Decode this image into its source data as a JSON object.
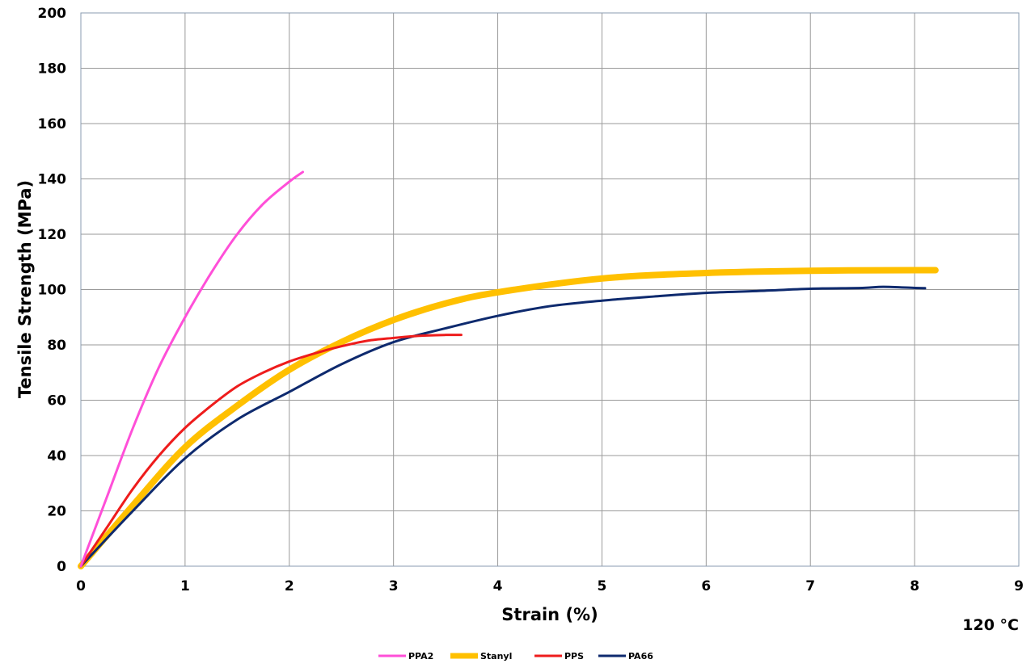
{
  "chart_data": {
    "type": "line",
    "xlabel": "Strain (%)",
    "ylabel": "Tensile Strength (MPa)",
    "xlim": [
      0,
      9
    ],
    "ylim": [
      0,
      200
    ],
    "x_ticks": [
      "0",
      "1",
      "2",
      "3",
      "4",
      "5",
      "6",
      "7",
      "8",
      "9"
    ],
    "y_ticks": [
      "0",
      "20",
      "40",
      "60",
      "80",
      "100",
      "120",
      "140",
      "160",
      "180",
      "200"
    ],
    "grid": true,
    "legend_position": "bottom",
    "annotation": "120 °C",
    "series": [
      {
        "name": "PPA2",
        "color": "#ff4fd8",
        "points": [
          [
            0,
            0
          ],
          [
            0.25,
            25
          ],
          [
            0.5,
            50
          ],
          [
            0.75,
            72
          ],
          [
            1,
            90
          ],
          [
            1.25,
            106
          ],
          [
            1.5,
            120
          ],
          [
            1.75,
            131
          ],
          [
            2,
            139
          ],
          [
            2.13,
            142.5
          ]
        ]
      },
      {
        "name": "Stanyl",
        "color": "#ffc000",
        "points": [
          [
            0,
            0
          ],
          [
            0.5,
            22
          ],
          [
            1,
            43
          ],
          [
            1.5,
            58
          ],
          [
            2,
            71
          ],
          [
            2.5,
            81
          ],
          [
            3,
            89
          ],
          [
            3.5,
            95
          ],
          [
            4,
            99
          ],
          [
            5,
            104
          ],
          [
            6,
            106
          ],
          [
            7,
            106.8
          ],
          [
            8,
            107
          ],
          [
            8.2,
            107
          ]
        ]
      },
      {
        "name": "PPS",
        "color": "#ee1c1c",
        "points": [
          [
            0,
            0
          ],
          [
            0.25,
            14
          ],
          [
            0.5,
            28
          ],
          [
            0.75,
            40
          ],
          [
            1,
            50
          ],
          [
            1.25,
            58
          ],
          [
            1.5,
            65
          ],
          [
            1.75,
            70
          ],
          [
            2,
            74
          ],
          [
            2.25,
            77
          ],
          [
            2.5,
            79.5
          ],
          [
            2.75,
            81.5
          ],
          [
            3,
            82.5
          ],
          [
            3.25,
            83.3
          ],
          [
            3.5,
            83.6
          ],
          [
            3.65,
            83.6
          ]
        ]
      },
      {
        "name": "PA66",
        "color": "#0e2a6e",
        "points": [
          [
            0,
            0
          ],
          [
            0.5,
            20
          ],
          [
            1,
            39
          ],
          [
            1.5,
            53
          ],
          [
            2,
            63
          ],
          [
            2.5,
            73
          ],
          [
            3,
            81
          ],
          [
            3.5,
            86
          ],
          [
            4,
            90.5
          ],
          [
            4.5,
            94
          ],
          [
            5,
            96
          ],
          [
            5.5,
            97.5
          ],
          [
            6,
            98.8
          ],
          [
            6.5,
            99.5
          ],
          [
            7,
            100.3
          ],
          [
            7.5,
            100.6
          ],
          [
            7.7,
            101
          ],
          [
            8,
            100.6
          ],
          [
            8.1,
            100.5
          ]
        ]
      }
    ]
  }
}
